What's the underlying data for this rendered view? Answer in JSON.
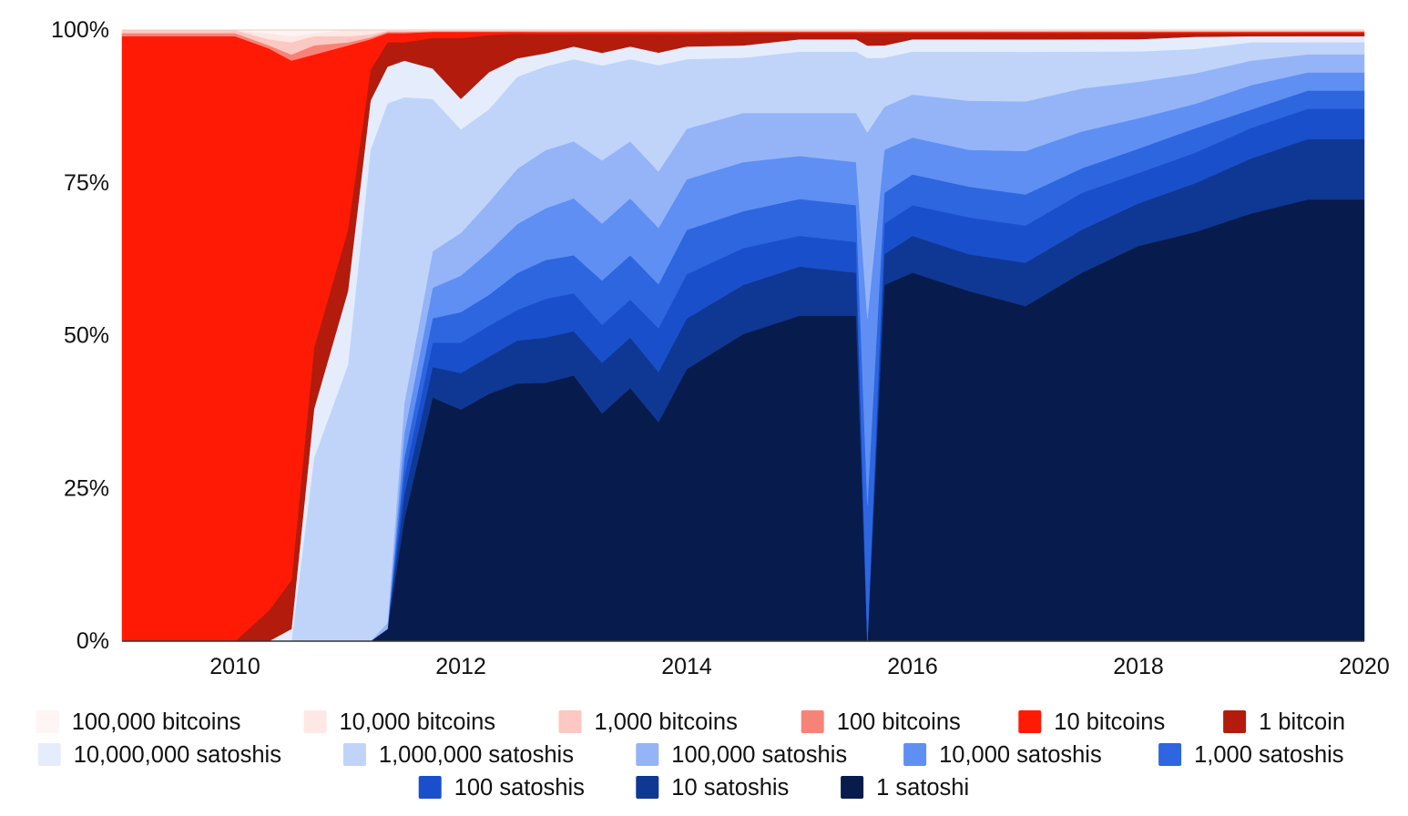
{
  "chart_data": {
    "type": "area",
    "stacked": true,
    "percent": true,
    "title": "",
    "xlabel": "",
    "ylabel": "",
    "xlim": [
      2009.0,
      2020.0
    ],
    "ylim": [
      0,
      100
    ],
    "grid": false,
    "legend_position": "bottom",
    "x_ticks": [
      {
        "value": 2010,
        "label": "2010"
      },
      {
        "value": 2012,
        "label": "2012"
      },
      {
        "value": 2014,
        "label": "2014"
      },
      {
        "value": 2016,
        "label": "2016"
      },
      {
        "value": 2018,
        "label": "2018"
      },
      {
        "value": 2020,
        "label": "2020"
      }
    ],
    "y_ticks": [
      {
        "value": 0,
        "label": "0%"
      },
      {
        "value": 25,
        "label": "25%"
      },
      {
        "value": 50,
        "label": "50%"
      },
      {
        "value": 75,
        "label": "75%"
      },
      {
        "value": 100,
        "label": "100%"
      }
    ],
    "x": [
      2009.0,
      2009.5,
      2010.0,
      2010.3,
      2010.5,
      2010.7,
      2011.0,
      2011.2,
      2011.35,
      2011.5,
      2011.75,
      2012.0,
      2012.25,
      2012.5,
      2012.75,
      2013.0,
      2013.25,
      2013.5,
      2013.75,
      2014.0,
      2014.5,
      2015.0,
      2015.5,
      2015.6,
      2015.75,
      2016.0,
      2016.5,
      2017.0,
      2017.5,
      2018.0,
      2018.5,
      2019.0,
      2019.5,
      2020.0
    ],
    "series": [
      {
        "name": "1 satoshi",
        "color": "#071c4d",
        "values": [
          0,
          0,
          0,
          0,
          0,
          0,
          0,
          0,
          2,
          20,
          40,
          38,
          40,
          42,
          40,
          42,
          36,
          40,
          35,
          43,
          50,
          53,
          53,
          0,
          58,
          60,
          57,
          54,
          60,
          65,
          67,
          70,
          73,
          73
        ]
      },
      {
        "name": "10 satoshis",
        "color": "#0f3894",
        "values": [
          0,
          0,
          0,
          0,
          0,
          0,
          0,
          0,
          0,
          4,
          5,
          6,
          6,
          7,
          7,
          7,
          8,
          8,
          8,
          8,
          8,
          8,
          7,
          0,
          5,
          6,
          6,
          7,
          7,
          7,
          8,
          9,
          10,
          10
        ]
      },
      {
        "name": "100 satoshis",
        "color": "#1a4fcc",
        "values": [
          0,
          0,
          0,
          0,
          0,
          0,
          0,
          0,
          0,
          3,
          4,
          5,
          5,
          5,
          6,
          6,
          6,
          6,
          7,
          7,
          6,
          5,
          5,
          0,
          5,
          5,
          6,
          6,
          6,
          5,
          5,
          5,
          5,
          5
        ]
      },
      {
        "name": "1,000 satoshis",
        "color": "#2e66e0",
        "values": [
          0,
          0,
          0,
          0,
          0,
          0,
          0,
          0,
          0,
          3,
          4,
          5,
          5,
          6,
          6,
          6,
          7,
          7,
          7,
          7,
          6,
          6,
          6,
          22,
          5,
          5,
          5,
          5,
          4,
          4,
          4,
          3,
          3,
          3
        ]
      },
      {
        "name": "10,000 satoshis",
        "color": "#5f8ff2",
        "values": [
          0,
          0,
          0,
          0,
          0,
          0,
          0,
          0,
          0,
          4,
          5,
          6,
          7,
          8,
          8,
          9,
          9,
          9,
          9,
          8,
          8,
          7,
          7,
          30,
          7,
          6,
          6,
          7,
          6,
          5,
          4,
          4,
          3,
          3
        ]
      },
      {
        "name": "100,000 satoshis",
        "color": "#95b4f7",
        "values": [
          0,
          0,
          0,
          0,
          0,
          0,
          0,
          0,
          1,
          5,
          6,
          7,
          8,
          9,
          9,
          9,
          10,
          9,
          9,
          8,
          8,
          7,
          8,
          30,
          7,
          7,
          8,
          8,
          7,
          6,
          5,
          4,
          3,
          3
        ]
      },
      {
        "name": "1,000,000 satoshis",
        "color": "#c0d4f9",
        "values": [
          0,
          0,
          0,
          0,
          0,
          30,
          45,
          80,
          85,
          50,
          25,
          17,
          15,
          15,
          13,
          13,
          15,
          13,
          17,
          11,
          9,
          10,
          10,
          12,
          8,
          7,
          8,
          8,
          6,
          5,
          4,
          3,
          2,
          2
        ]
      },
      {
        "name": "10,000,000 satoshis",
        "color": "#e5edfc",
        "values": [
          0,
          0,
          0,
          0,
          2,
          8,
          12,
          8,
          6,
          6,
          5,
          5,
          6,
          3,
          2,
          2,
          2,
          2,
          2,
          2,
          2,
          2,
          2,
          2,
          2,
          2,
          2,
          2,
          2,
          2,
          2,
          1,
          1,
          1
        ]
      },
      {
        "name": "1 bitcoin",
        "color": "#b31b0c",
        "values": [
          0,
          0,
          0,
          5,
          8,
          10,
          10,
          5,
          4,
          3,
          5,
          10,
          6,
          4,
          3,
          2,
          3,
          2,
          3,
          2,
          2,
          1,
          1,
          2,
          2,
          1,
          1,
          1,
          1,
          1,
          0.6,
          0.5,
          0.5,
          0.5
        ]
      },
      {
        "name": "10 bitcoins",
        "color": "#ff1a05",
        "values": [
          99,
          99,
          99,
          92,
          85,
          48,
          30,
          5,
          1.5,
          1.5,
          1,
          1,
          0.5,
          0.3,
          0.3,
          0.3,
          0.3,
          0.3,
          0.3,
          0.3,
          0.2,
          0.2,
          0.2,
          0.2,
          0.2,
          0.2,
          0.2,
          0.2,
          0.2,
          0.2,
          0.2,
          0.2,
          0.2,
          0.2
        ]
      },
      {
        "name": "100 bitcoins",
        "color": "#f78378",
        "values": [
          0.5,
          0.5,
          0.5,
          0.5,
          1,
          1.5,
          0.5,
          0.3,
          0.2,
          0.2,
          0.1,
          0.1,
          0.1,
          0.1,
          0.1,
          0.1,
          0.1,
          0.1,
          0.1,
          0.1,
          0.1,
          0.1,
          0.1,
          0.1,
          0.1,
          0.1,
          0.1,
          0.1,
          0.1,
          0.1,
          0.1,
          0.1,
          0.1,
          0.1
        ]
      },
      {
        "name": "1,000 bitcoins",
        "color": "#fcc8c2",
        "values": [
          0.5,
          0.5,
          0.5,
          1,
          2,
          1.5,
          1,
          0.5,
          0.2,
          0.2,
          0.1,
          0.1,
          0.1,
          0.1,
          0.1,
          0.1,
          0.1,
          0.1,
          0.1,
          0.1,
          0.1,
          0.1,
          0.1,
          0.1,
          0.1,
          0.1,
          0.1,
          0.1,
          0.1,
          0.1,
          0.1,
          0.1,
          0.1,
          0.1
        ]
      },
      {
        "name": "10,000 bitcoins",
        "color": "#fde8e6",
        "values": [
          0,
          0,
          0,
          1,
          1,
          0.5,
          1,
          0.7,
          0.1,
          0.1,
          0.1,
          0.1,
          0.1,
          0.1,
          0.1,
          0.1,
          0.1,
          0.1,
          0.1,
          0.1,
          0.1,
          0.1,
          0.1,
          0.1,
          0.1,
          0.1,
          0.1,
          0.1,
          0.1,
          0.1,
          0.1,
          0.1,
          0.1,
          0.1
        ]
      },
      {
        "name": "100,000 bitcoins",
        "color": "#fff5f4",
        "values": [
          0,
          0,
          0,
          0.5,
          1,
          0.5,
          0,
          0,
          0,
          0,
          0,
          0,
          0,
          0,
          0,
          0,
          0,
          0,
          0,
          0,
          0,
          0,
          0,
          0,
          0,
          0,
          0,
          0,
          0,
          0,
          0,
          0,
          0,
          0
        ]
      }
    ],
    "legend": [
      {
        "label": "100,000 bitcoins",
        "color": "#fff5f4"
      },
      {
        "label": "10,000 bitcoins",
        "color": "#fde8e6"
      },
      {
        "label": "1,000 bitcoins",
        "color": "#fcc8c2"
      },
      {
        "label": "100 bitcoins",
        "color": "#f78378"
      },
      {
        "label": "10 bitcoins",
        "color": "#ff1a05"
      },
      {
        "label": "1 bitcoin",
        "color": "#b31b0c"
      },
      {
        "label": "10,000,000 satoshis",
        "color": "#e5edfc"
      },
      {
        "label": "1,000,000 satoshis",
        "color": "#c0d4f9"
      },
      {
        "label": "100,000 satoshis",
        "color": "#95b4f7"
      },
      {
        "label": "10,000 satoshis",
        "color": "#5f8ff2"
      },
      {
        "label": "1,000 satoshis",
        "color": "#2e66e0"
      },
      {
        "label": "100 satoshis",
        "color": "#1a4fcc"
      },
      {
        "label": "10 satoshis",
        "color": "#0f3894"
      },
      {
        "label": "1 satoshi",
        "color": "#071c4d"
      }
    ]
  }
}
